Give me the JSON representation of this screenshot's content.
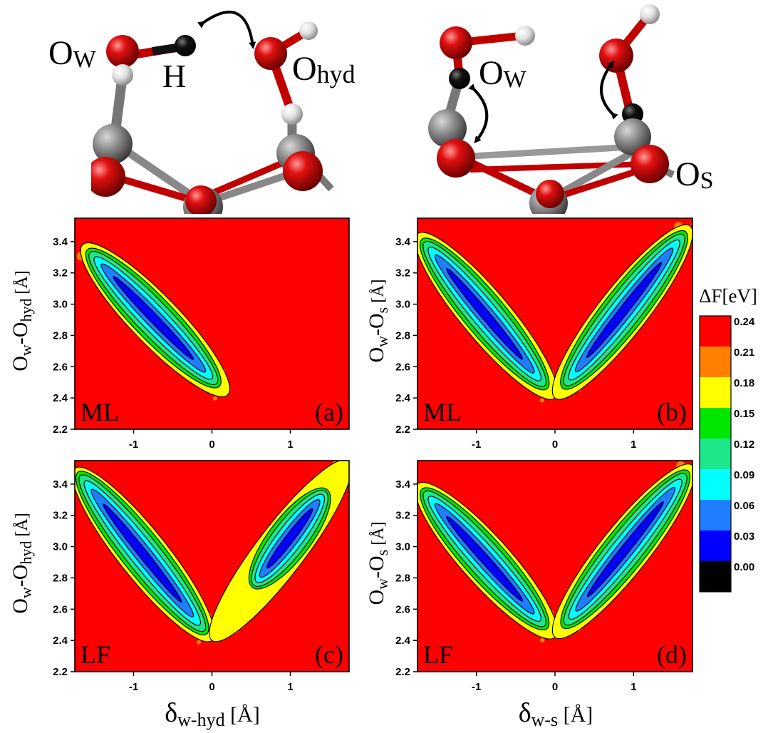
{
  "molecules": {
    "left": {
      "labels": {
        "ow": "O",
        "ow_sub": "W",
        "h": "H",
        "ohyd": "O",
        "ohyd_sub": "hyd"
      }
    },
    "right": {
      "labels": {
        "ow": "O",
        "ow_sub": "W",
        "os": "O",
        "os_sub": "S"
      }
    }
  },
  "colors": {
    "band_0": "#000000",
    "band_1": "#0000ff",
    "band_2": "#1e7eff",
    "band_3": "#00ffff",
    "band_4": "#1ee68a",
    "band_5": "#00e600",
    "band_6": "#ffff00",
    "band_7": "#ff7f00",
    "band_8": "#ff0000"
  },
  "colorbar": {
    "title": "ΔF[eV]",
    "ticks": [
      "0.24",
      "0.21",
      "0.18",
      "0.15",
      "0.12",
      "0.09",
      "0.06",
      "0.03",
      "0.00"
    ]
  },
  "axes": {
    "x_ticks": [
      "-1",
      "0",
      "1"
    ],
    "y_ticks": [
      "3.4",
      "3.2",
      "3.0",
      "2.8",
      "2.6",
      "2.4",
      "2.2"
    ],
    "ylabel_hyd": {
      "o1": "O",
      "w": "w",
      "dash": "-O",
      "sub": "hyd",
      "unit": "[Å]"
    },
    "ylabel_s": {
      "o1": "O",
      "w": "w",
      "dash": "-O",
      "sub": "s",
      "unit": "[Å]"
    },
    "xlabel_left": {
      "delta": "δ",
      "sub": "w-hyd",
      "unit": " [Å]"
    },
    "xlabel_right": {
      "delta": "δ",
      "sub": "w-s",
      "unit": " [Å]"
    }
  },
  "chart_data": [
    {
      "type": "heatmap",
      "panel_label": "(a)",
      "method_label": "ML",
      "xlim": [
        -1.75,
        1.75
      ],
      "ylim": [
        2.2,
        3.55
      ],
      "basins": [
        {
          "x1": 0.2,
          "y1": 2.42,
          "x2": -1.65,
          "y2": 3.38,
          "fill": 0.92
        }
      ]
    },
    {
      "type": "heatmap",
      "panel_label": "(b)",
      "method_label": "ML",
      "xlim": [
        -1.75,
        1.75
      ],
      "ylim": [
        2.2,
        3.55
      ],
      "basins": [
        {
          "x1": 0.0,
          "y1": 2.4,
          "x2": -1.75,
          "y2": 3.45,
          "fill": 0.92
        },
        {
          "x1": 0.0,
          "y1": 2.4,
          "x2": 1.72,
          "y2": 3.5,
          "fill": 0.92
        }
      ]
    },
    {
      "type": "heatmap",
      "panel_label": "(c)",
      "method_label": "LF",
      "xlim": [
        -1.75,
        1.75
      ],
      "ylim": [
        2.2,
        3.55
      ],
      "basins": [
        {
          "x1": 0.0,
          "y1": 2.4,
          "x2": -1.75,
          "y2": 3.5,
          "fill": 0.95
        },
        {
          "x1": 0.0,
          "y1": 2.4,
          "x2": 1.75,
          "y2": 3.55,
          "fill": 0.55
        }
      ]
    },
    {
      "type": "heatmap",
      "panel_label": "(d)",
      "method_label": "LF",
      "xlim": [
        -1.75,
        1.75
      ],
      "ylim": [
        2.2,
        3.55
      ],
      "basins": [
        {
          "x1": 0.0,
          "y1": 2.42,
          "x2": -1.75,
          "y2": 3.4,
          "fill": 0.92
        },
        {
          "x1": 0.0,
          "y1": 2.42,
          "x2": 1.75,
          "y2": 3.52,
          "fill": 0.92
        }
      ]
    }
  ]
}
